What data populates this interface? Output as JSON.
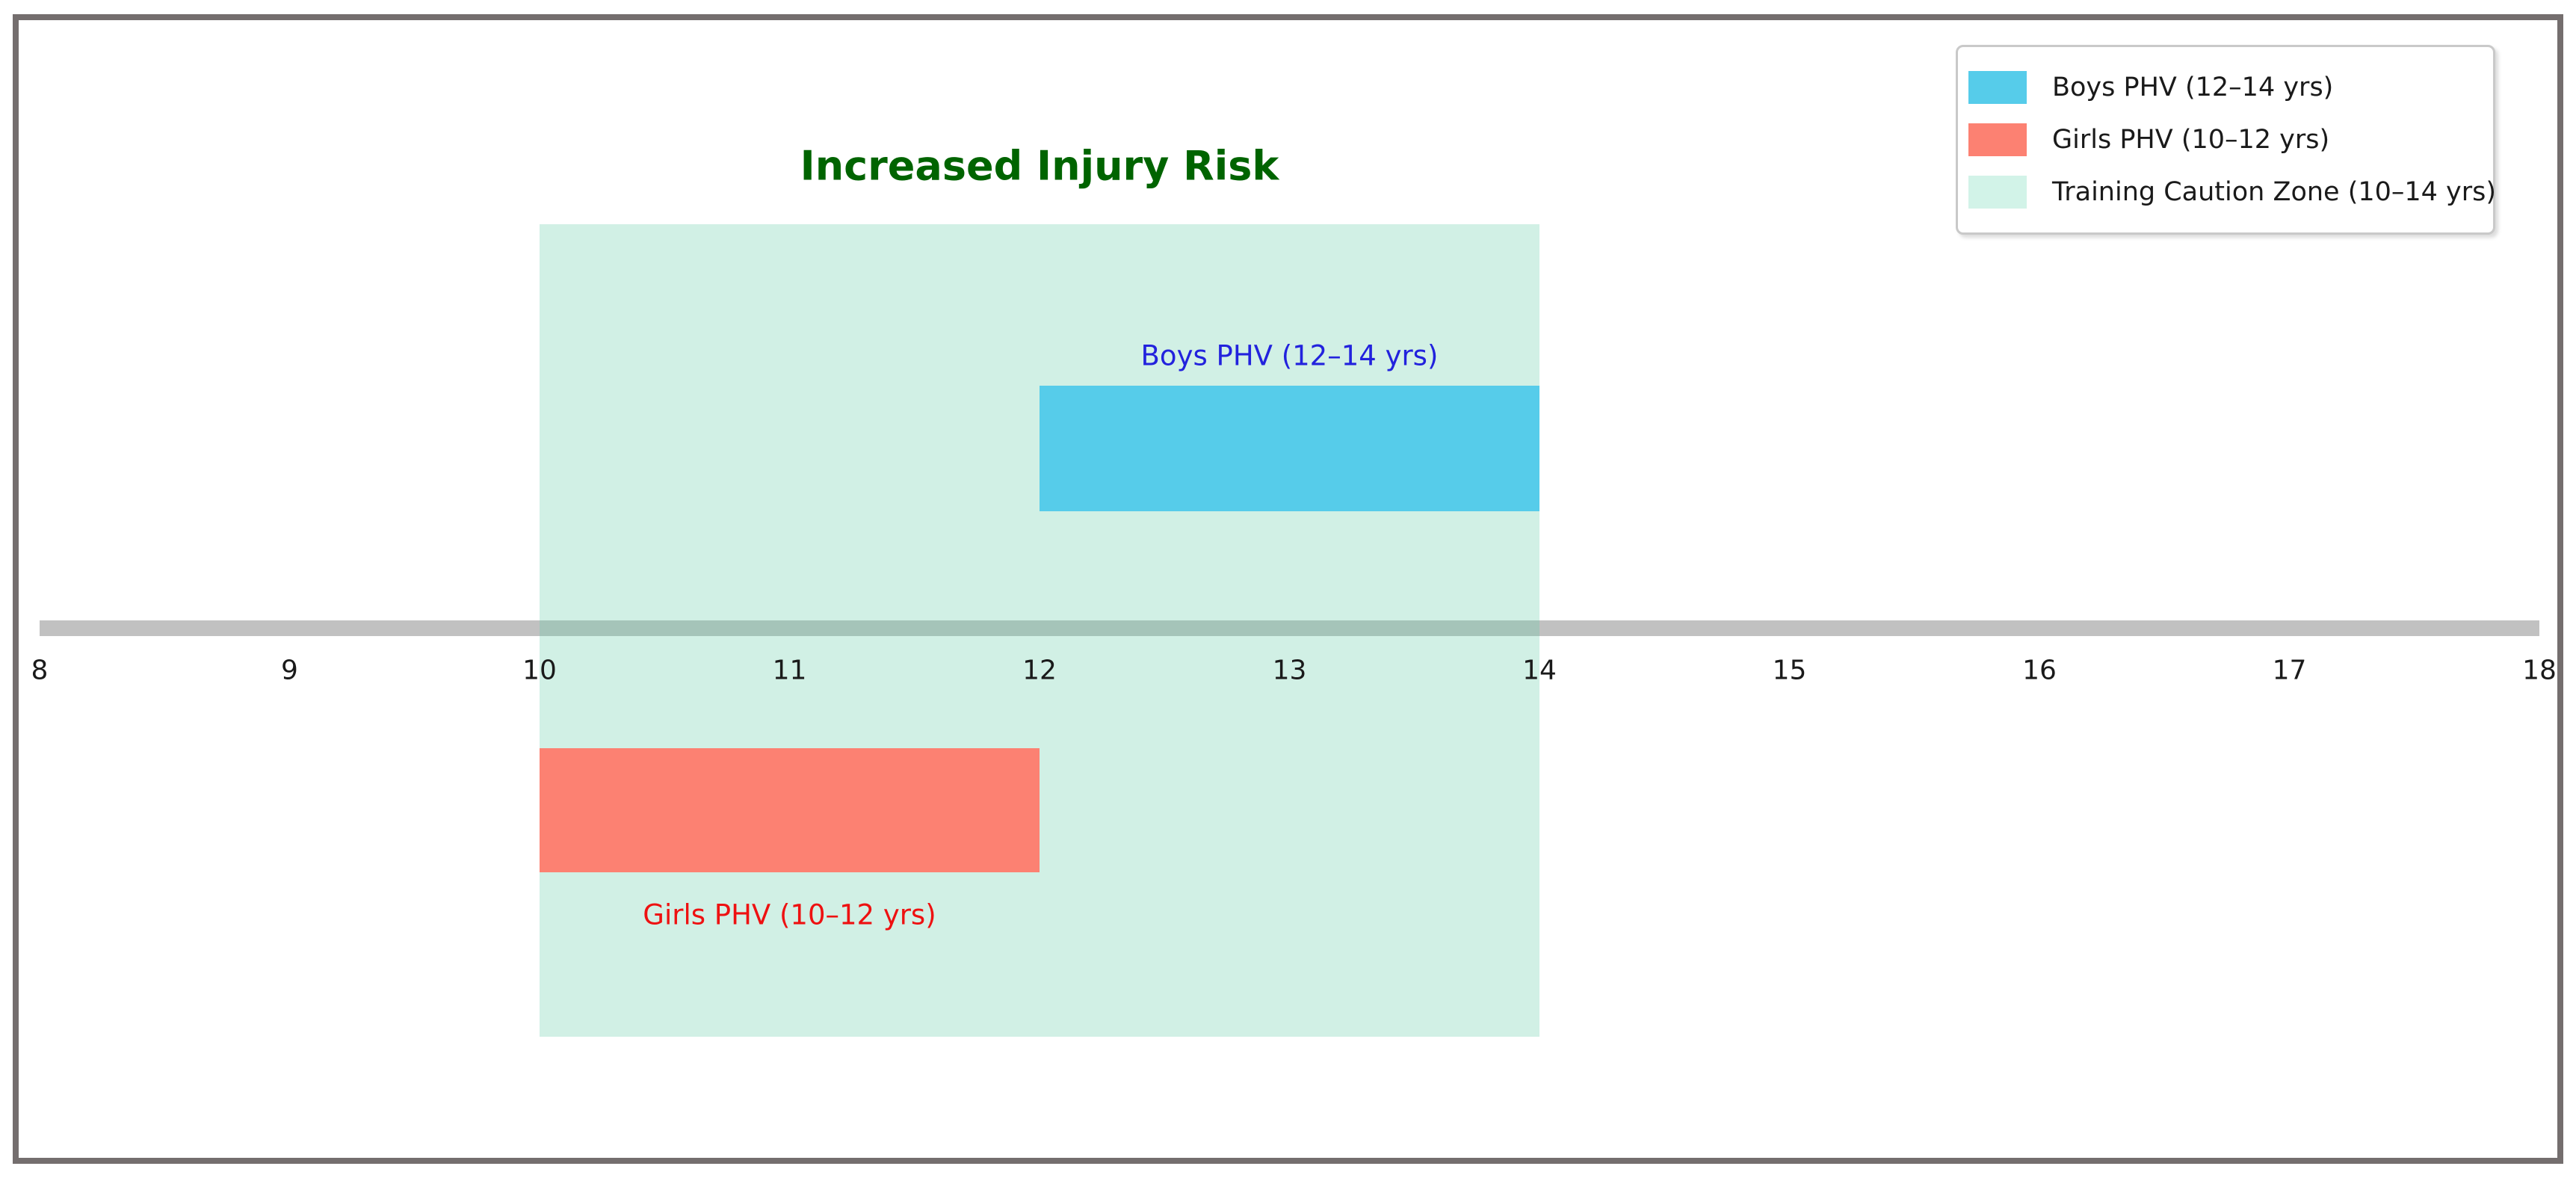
{
  "chart_data": {
    "type": "bar",
    "subtype": "horizontal-timeline",
    "title": "Increased Injury Risk",
    "title_color": "#006400",
    "title_anchor_x": 12,
    "x_axis": {
      "min": 8,
      "max": 18,
      "ticks": [
        8,
        9,
        10,
        11,
        12,
        13,
        14,
        15,
        16,
        17,
        18
      ],
      "tick_label_color": "#1a1a1a",
      "axis_line_color": "#c1c1c1"
    },
    "series": [
      {
        "name": "Boys PHV (12–14 yrs)",
        "start": 12,
        "end": 14,
        "bar_color": "#56ccea",
        "label_color": "#2222dd",
        "position": "above-axis"
      },
      {
        "name": "Girls PHV (10–12 yrs)",
        "start": 10,
        "end": 12,
        "bar_color": "#fc8172",
        "label_color": "#ee1111",
        "position": "below-axis"
      }
    ],
    "zone": {
      "name": "Training Caution Zone (10–14 yrs)",
      "start": 10,
      "end": 14,
      "fill_color_on_white": "#d2f3e8",
      "overlay_rgba": "rgba(102,205,170,0.30)"
    },
    "legend": {
      "position": "top-right",
      "items": [
        {
          "label": "Boys PHV (12–14 yrs)",
          "swatch_color": "#56ccea"
        },
        {
          "label": "Girls PHV (10–12 yrs)",
          "swatch_color": "#fc8172"
        },
        {
          "label": "Training Caution Zone (10–14 yrs)",
          "swatch_color": "#d2f3e8"
        }
      ]
    },
    "frame_color": "#746e6e",
    "background_color": "#ffffff"
  }
}
